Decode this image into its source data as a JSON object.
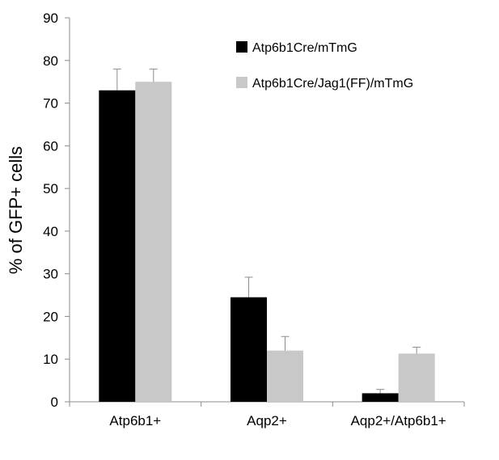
{
  "chart_data": {
    "type": "bar",
    "title": "",
    "xlabel": "",
    "ylabel": "% of GFP+ cells",
    "ylim": [
      0,
      90
    ],
    "yticks": [
      0,
      10,
      20,
      30,
      40,
      50,
      60,
      70,
      80,
      90
    ],
    "grid": false,
    "legend_position": "top-right",
    "categories": [
      "Atp6b1+",
      "Aqp2+",
      "Aqp2+/Atp6b1+"
    ],
    "series": [
      {
        "name": "Atp6b1Cre/mTmG",
        "color": "#000000",
        "values": [
          73.0,
          24.5,
          2.0
        ],
        "errors": [
          5.0,
          4.7,
          0.9
        ]
      },
      {
        "name": "Atp6b1Cre/Jag1(FF)/mTmG",
        "color": "#c8c8c8",
        "values": [
          75.0,
          12.0,
          11.3
        ],
        "errors": [
          3.0,
          3.3,
          1.5
        ]
      }
    ]
  }
}
